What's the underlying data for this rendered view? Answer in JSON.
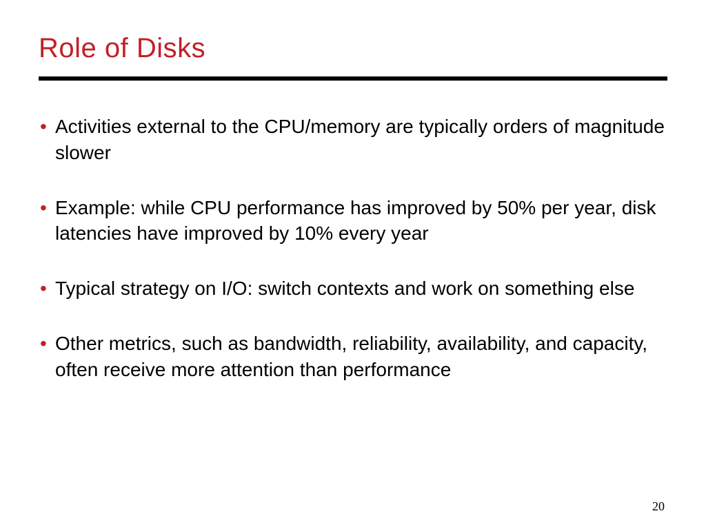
{
  "slide": {
    "title": "Role of Disks",
    "title_color": "#c22026",
    "title_fontsize": 40,
    "rule_color": "#000000",
    "rule_thickness": 6,
    "background_color": "#ffffff",
    "bullet_color": "#c22026",
    "body_color": "#000000",
    "body_fontsize": 28,
    "bullets": [
      "Activities external to the CPU/memory are typically orders of magnitude slower",
      "Example: while CPU performance has improved by 50% per year, disk latencies have improved by 10% every year",
      "Typical strategy on I/O: switch contexts and work on something else",
      "Other metrics, such as bandwidth, reliability, availability, and capacity, often receive more attention than performance"
    ],
    "page_number": "20",
    "page_number_fontsize": 18
  }
}
